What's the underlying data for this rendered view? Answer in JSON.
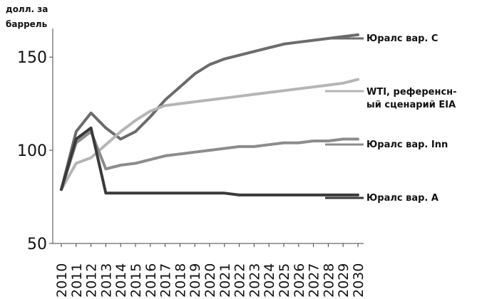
{
  "chart_data": {
    "type": "line",
    "ylabel": [
      "долл. за",
      "баррель"
    ],
    "ylim": [
      50,
      160
    ],
    "yticks": [
      50,
      100,
      150
    ],
    "x": [
      2010,
      2011,
      2012,
      2013,
      2014,
      2015,
      2016,
      2017,
      2018,
      2019,
      2020,
      2021,
      2022,
      2023,
      2024,
      2025,
      2026,
      2027,
      2028,
      2029,
      2030
    ],
    "series": [
      {
        "name_lines": [
          "Юралс вар. С"
        ],
        "color": "#6b6b6b",
        "values": [
          79,
          110,
          120,
          112,
          106,
          110,
          118,
          127,
          134,
          141,
          146,
          149,
          151,
          153,
          155,
          157,
          158,
          159,
          160,
          161,
          162
        ]
      },
      {
        "name_lines": [
          "WTI, референсн-",
          "ый сценарий EIA"
        ],
        "color": "#b5b5b5",
        "values": [
          79,
          93,
          96,
          103,
          110,
          116,
          121,
          124,
          125,
          126,
          127,
          128,
          129,
          130,
          131,
          132,
          133,
          134,
          135,
          136,
          138
        ]
      },
      {
        "name_lines": [
          "Юралс вар. Inn"
        ],
        "color": "#8c8c8c",
        "values": [
          79,
          104,
          110,
          90,
          92,
          93,
          95,
          97,
          98,
          99,
          100,
          101,
          102,
          102,
          103,
          104,
          104,
          105,
          105,
          106,
          106
        ]
      },
      {
        "name_lines": [
          "Юралс вар. А"
        ],
        "color": "#3a3a3a",
        "values": [
          79,
          106,
          112,
          77,
          77,
          77,
          77,
          77,
          77,
          77,
          77,
          77,
          76,
          76,
          76,
          76,
          76,
          76,
          76,
          76,
          76
        ]
      }
    ]
  }
}
